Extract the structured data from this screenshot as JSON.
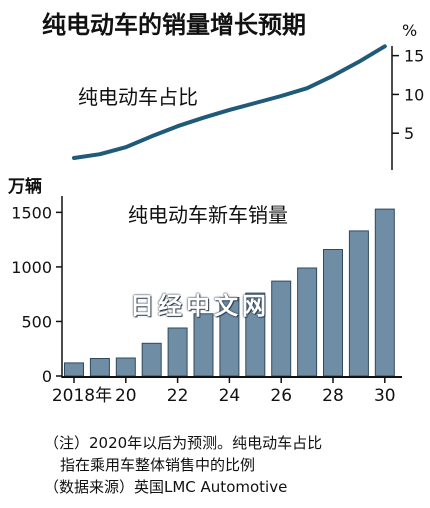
{
  "title": "纯电动车的销量增长预期",
  "watermark_text": "日经中文网",
  "notes": [
    "（注）2020年以后为预测。纯电动车占比",
    "指在乘用车整体销售中的比例",
    "（数据来源）英国LMC Automotive"
  ],
  "colors": {
    "bar": "#6f8ea6",
    "line": "#1f5a78",
    "axis": "#111111"
  },
  "chart_data": [
    {
      "type": "line",
      "label": "纯电动车占比",
      "unit_label": "%",
      "x": [
        2018,
        2019,
        2020,
        2021,
        2022,
        2023,
        2024,
        2025,
        2026,
        2027,
        2028,
        2029,
        2030
      ],
      "values": [
        1.8,
        2.3,
        3.2,
        4.6,
        5.9,
        7.0,
        8.0,
        8.9,
        9.8,
        10.8,
        12.4,
        14.2,
        16.2
      ],
      "ylim": [
        0,
        16.5
      ],
      "yticks": [
        5,
        10,
        15
      ],
      "ytick_labels": [
        "5",
        "10",
        "15"
      ]
    },
    {
      "type": "bar",
      "label": "纯电动车新车销量",
      "unit_label": "万辆",
      "x": [
        2018,
        2019,
        2020,
        2021,
        2022,
        2023,
        2024,
        2025,
        2026,
        2027,
        2028,
        2029,
        2030
      ],
      "values": [
        120,
        160,
        165,
        300,
        440,
        570,
        720,
        760,
        870,
        990,
        1160,
        1330,
        1530
      ],
      "ylim": [
        0,
        1650
      ],
      "yticks": [
        0,
        500,
        1000,
        1500
      ],
      "ytick_labels": [
        "0",
        "500",
        "1000",
        "1500"
      ],
      "xtick_labels": [
        "2018年",
        "20",
        "22",
        "24",
        "26",
        "28",
        "30"
      ],
      "xtick_years": [
        2018,
        2020,
        2022,
        2024,
        2026,
        2028,
        2030
      ]
    }
  ]
}
